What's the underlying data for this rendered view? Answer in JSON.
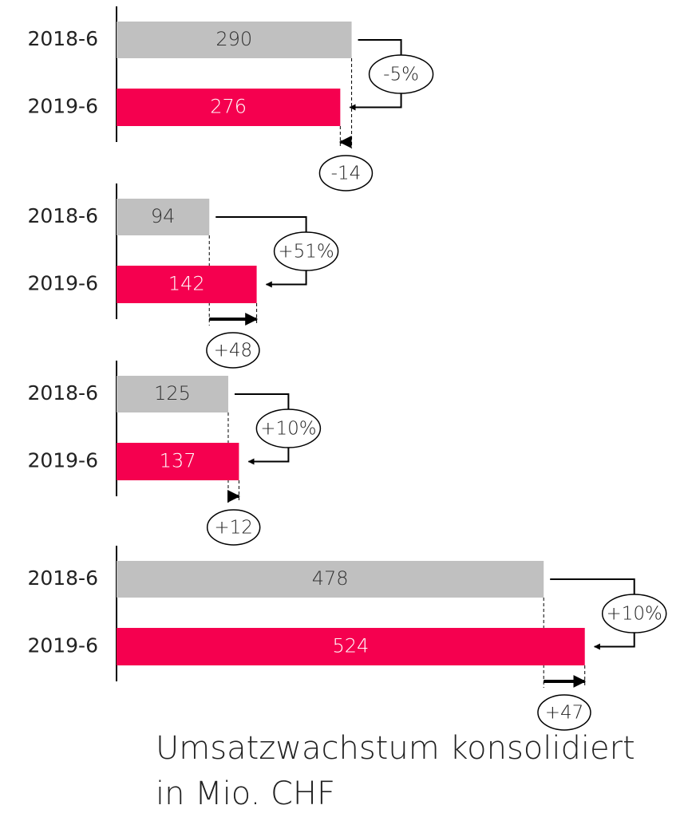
{
  "chart_data": [
    {
      "type": "bar",
      "orientation": "horizontal",
      "categories": [
        "2018-6",
        "2019-6"
      ],
      "values": [
        290,
        276
      ],
      "colors": [
        "#c0c0c0",
        "#f5004f"
      ],
      "xlim": [
        0,
        700
      ],
      "change_pct": "-5%",
      "change_abs": "-14"
    },
    {
      "type": "bar",
      "orientation": "horizontal",
      "categories": [
        "2018-6",
        "2019-6"
      ],
      "values": [
        94,
        142
      ],
      "colors": [
        "#c0c0c0",
        "#f5004f"
      ],
      "xlim": [
        0,
        575
      ],
      "change_pct": "+51%",
      "change_abs": "+48"
    },
    {
      "type": "bar",
      "orientation": "horizontal",
      "categories": [
        "2018-6",
        "2019-6"
      ],
      "values": [
        125,
        137
      ],
      "colors": [
        "#c0c0c0",
        "#f5004f"
      ],
      "xlim": [
        0,
        635
      ],
      "change_pct": "+10%",
      "change_abs": "+12"
    },
    {
      "type": "bar",
      "orientation": "horizontal",
      "categories": [
        "2018-6",
        "2019-6"
      ],
      "values": [
        478,
        524
      ],
      "colors": [
        "#c0c0c0",
        "#f5004f"
      ],
      "xlim": [
        0,
        635
      ],
      "change_pct": "+10%",
      "change_abs": "+47"
    }
  ],
  "title": [
    "Umsatzwachstum konsolidiert",
    "in Mio. CHF"
  ]
}
